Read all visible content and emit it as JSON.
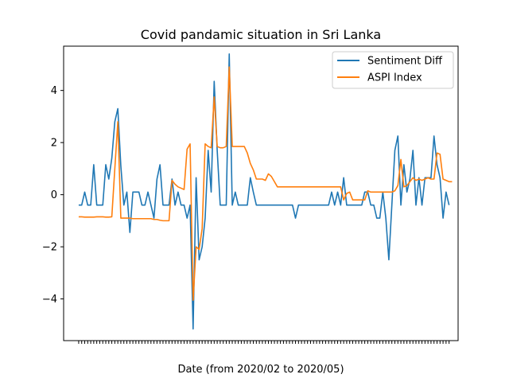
{
  "chart_data": {
    "type": "line",
    "title": "Covid pandamic situation in Sri Lanka",
    "xlabel": "Date (from 2020/02 to 2020/05)",
    "ylabel": "",
    "ylim": [
      -5.6,
      5.7
    ],
    "yticks": [
      -4,
      -2,
      0,
      2,
      4
    ],
    "xlim": [
      -5,
      126
    ],
    "grid": false,
    "legend_position": "top-right",
    "series": [
      {
        "name": "Sentiment Diff",
        "color": "#1f77b4",
        "values": [
          -0.4,
          -0.4,
          0.1,
          -0.4,
          -0.4,
          1.15,
          -0.4,
          -0.4,
          -0.4,
          1.15,
          0.6,
          1.4,
          2.8,
          3.3,
          1.1,
          -0.4,
          0.1,
          -1.45,
          0.1,
          0.1,
          0.1,
          -0.4,
          -0.4,
          0.1,
          -0.4,
          -0.9,
          0.6,
          1.15,
          -0.4,
          -0.4,
          -0.4,
          0.6,
          -0.4,
          0.1,
          -0.4,
          -0.4,
          -0.9,
          -0.4,
          -5.15,
          0.65,
          -2.5,
          -2.0,
          -0.9,
          1.7,
          0.1,
          4.35,
          1.7,
          -0.4,
          -0.4,
          -0.4,
          5.4,
          -0.4,
          0.1,
          -0.4,
          -0.4,
          -0.4,
          -0.4,
          0.65,
          0.1,
          -0.4,
          -0.4,
          -0.4,
          -0.4,
          -0.4,
          -0.4,
          -0.4,
          -0.4,
          -0.4,
          -0.4,
          -0.4,
          -0.4,
          -0.4,
          -0.9,
          -0.4,
          -0.4,
          -0.4,
          -0.4,
          -0.4,
          -0.4,
          -0.4,
          -0.4,
          -0.4,
          -0.4,
          -0.4,
          0.1,
          -0.4,
          0.1,
          -0.4,
          0.65,
          -0.4,
          -0.4,
          -0.4,
          -0.4,
          -0.4,
          -0.4,
          0.1,
          0.1,
          -0.4,
          -0.4,
          -0.9,
          -0.9,
          0.1,
          -0.9,
          -2.5,
          -0.4,
          1.7,
          2.25,
          -0.4,
          1.15,
          0.1,
          0.6,
          1.7,
          -0.4,
          0.65,
          -0.4,
          0.65,
          0.65,
          0.65,
          2.25,
          1.15,
          0.65,
          -0.9,
          0.1,
          -0.4
        ]
      },
      {
        "name": "ASPI Index",
        "color": "#ff7f0e",
        "values": [
          -0.85,
          -0.85,
          -0.86,
          -0.86,
          -0.86,
          -0.86,
          -0.85,
          -0.85,
          -0.85,
          -0.86,
          -0.86,
          -0.85,
          1.0,
          2.8,
          -0.9,
          -0.9,
          -0.9,
          -0.9,
          -0.92,
          -0.92,
          -0.92,
          -0.92,
          -0.92,
          -0.92,
          -0.92,
          -0.95,
          -0.95,
          -0.98,
          -1.0,
          -1.0,
          -1.0,
          0.55,
          0.4,
          0.3,
          0.25,
          0.2,
          1.75,
          1.95,
          -4.05,
          -2.0,
          -2.1,
          -1.3,
          1.95,
          1.85,
          1.8,
          3.75,
          1.85,
          1.8,
          1.8,
          1.85,
          4.9,
          1.85,
          1.85,
          1.85,
          1.85,
          1.85,
          1.6,
          1.2,
          0.95,
          0.6,
          0.6,
          0.6,
          0.55,
          0.8,
          0.7,
          0.5,
          0.3,
          0.3,
          0.3,
          0.3,
          0.3,
          0.3,
          0.3,
          0.3,
          0.3,
          0.3,
          0.3,
          0.3,
          0.3,
          0.3,
          0.3,
          0.3,
          0.3,
          0.3,
          0.3,
          0.3,
          0.3,
          0.3,
          -0.2,
          0.05,
          0.1,
          -0.2,
          -0.2,
          -0.2,
          -0.2,
          -0.2,
          0.15,
          0.1,
          0.1,
          0.1,
          0.1,
          0.1,
          0.1,
          0.1,
          0.1,
          0.15,
          0.35,
          1.35,
          0.3,
          0.35,
          0.5,
          0.65,
          0.55,
          0.6,
          0.55,
          0.6,
          0.65,
          0.6,
          0.6,
          1.6,
          1.55,
          0.6,
          0.55,
          0.5,
          0.5
        ]
      }
    ]
  }
}
